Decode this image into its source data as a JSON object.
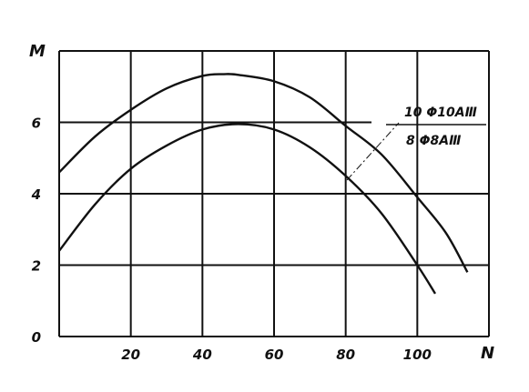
{
  "chart_data": {
    "type": "line",
    "xlabel": "N",
    "ylabel": "M",
    "xlim": [
      0,
      120
    ],
    "ylim": [
      0,
      8
    ],
    "grid": true,
    "x_ticks": [
      "20",
      "40",
      "60",
      "80",
      "100"
    ],
    "y_ticks": [
      "0",
      "2",
      "4",
      "6"
    ],
    "series": [
      {
        "x": [
          0,
          10,
          20,
          30,
          40,
          46,
          50,
          60,
          70,
          80,
          90,
          100,
          108,
          114
        ],
        "values": [
          4.6,
          5.6,
          6.35,
          6.95,
          7.3,
          7.35,
          7.33,
          7.15,
          6.7,
          5.9,
          5.1,
          3.9,
          2.9,
          1.8
        ]
      },
      {
        "x": [
          0,
          10,
          20,
          30,
          40,
          50,
          60,
          70,
          80,
          90,
          100,
          105
        ],
        "values": [
          2.4,
          3.7,
          4.7,
          5.35,
          5.8,
          5.95,
          5.8,
          5.3,
          4.5,
          3.45,
          2.0,
          1.2
        ]
      }
    ],
    "annotation": {
      "numerator": "10 Φ10AⅢ",
      "denominator": "8 Φ8AⅢ"
    }
  }
}
